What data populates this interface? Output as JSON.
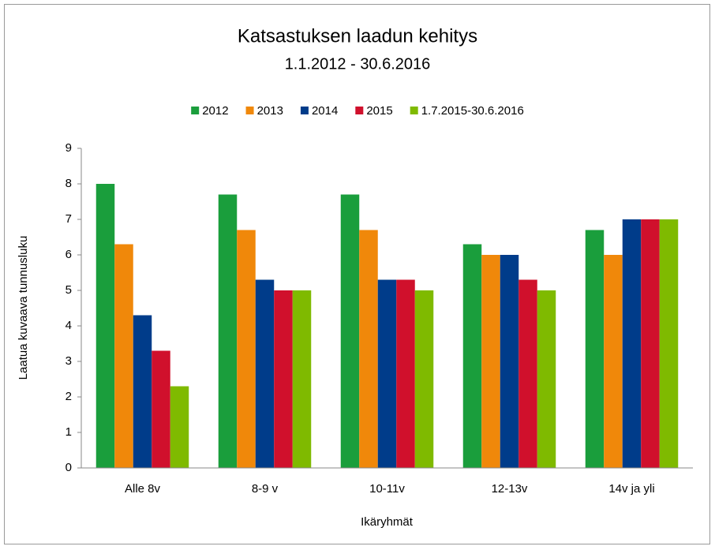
{
  "chart_data": {
    "type": "bar",
    "title": "Katsastuksen laadun kehitys",
    "subtitle": "1.1.2012 - 30.6.2016",
    "x_label": "Ikäryhmät",
    "y_label": "Laatua kuvaava  tunnusluku",
    "categories": [
      "Alle 8v",
      "8-9 v",
      "10-11v",
      "12-13v",
      "14v ja yli"
    ],
    "series": [
      {
        "name": "2012",
        "color": "#1a9e3c",
        "values": [
          8,
          7.7,
          7.7,
          6.3,
          6.7
        ]
      },
      {
        "name": "2013",
        "color": "#f0880a",
        "values": [
          6.3,
          6.7,
          6.7,
          6,
          6
        ]
      },
      {
        "name": "2014",
        "color": "#003c8a",
        "values": [
          4.3,
          5.3,
          5.3,
          6,
          7
        ]
      },
      {
        "name": "2015",
        "color": "#d0102c",
        "values": [
          3.3,
          5,
          5.3,
          5.3,
          7
        ]
      },
      {
        "name": "1.7.2015-30.6.2016",
        "color": "#7fba00",
        "values": [
          2.3,
          5,
          5,
          5,
          7
        ]
      }
    ],
    "ylim": [
      0,
      9
    ],
    "yticks": [
      0,
      1,
      2,
      3,
      4,
      5,
      6,
      7,
      8,
      9
    ],
    "grid": false,
    "legend": "top"
  }
}
